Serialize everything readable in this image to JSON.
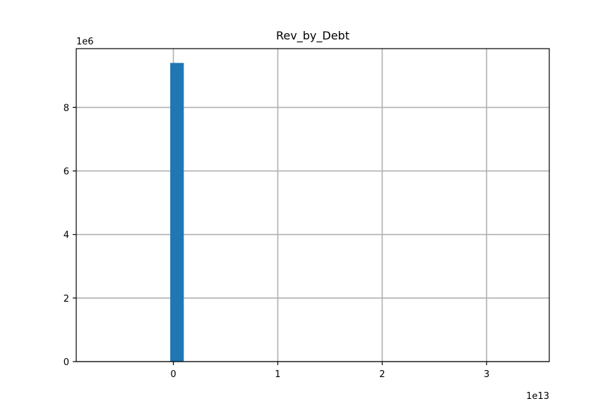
{
  "chart_data": {
    "type": "bar",
    "title": "Rev_by_Debt",
    "xlabel": "",
    "ylabel": "",
    "x_offset_label": "1e13",
    "y_offset_label": "1e6",
    "xlim": [
      -0.93,
      3.6
    ],
    "ylim": [
      0,
      9.85
    ],
    "xticks": [
      0,
      1,
      2,
      3
    ],
    "xtick_labels": [
      "0",
      "1",
      "2",
      "3"
    ],
    "yticks": [
      0,
      2,
      4,
      6,
      8
    ],
    "ytick_labels": [
      "0",
      "2",
      "4",
      "6",
      "8"
    ],
    "grid": true,
    "bars": [
      {
        "x0": -0.03,
        "x1": 0.1,
        "value": 9.4
      }
    ],
    "bar_color": "#1f77b4"
  }
}
